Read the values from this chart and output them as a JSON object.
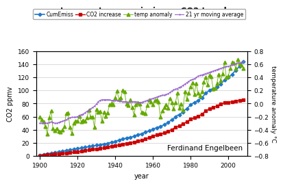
{
  "title": "temperature - emissions - CO2 trends",
  "xlabel": "year",
  "ylabel_left": "CO2 ppmv",
  "ylabel_right": "temperature anomaly °C",
  "watermark": "Ferdinand Engelbeen",
  "ylim_left": [
    0,
    160
  ],
  "ylim_right": [
    -0.8,
    0.8
  ],
  "xlim": [
    1898,
    2010
  ],
  "yticks_left": [
    0,
    20,
    40,
    60,
    80,
    100,
    120,
    140,
    160
  ],
  "yticks_right": [
    -0.8,
    -0.6,
    -0.4,
    -0.2,
    0,
    0.2,
    0.4,
    0.6,
    0.8
  ],
  "xticks": [
    1900,
    1920,
    1940,
    1960,
    1980,
    2000
  ],
  "colors": {
    "CumEmiss": "#1F78C8",
    "CO2 increase": "#CC0000",
    "temp anomaly": "#66AA00",
    "21 yr moving average": "#9966CC"
  },
  "background_color": "#FFFFFF",
  "grid_color": "#CCCCCC",
  "cum_emiss_years": [
    1900,
    1901,
    1902,
    1903,
    1904,
    1905,
    1906,
    1907,
    1908,
    1909,
    1910,
    1911,
    1912,
    1913,
    1914,
    1915,
    1916,
    1917,
    1918,
    1919,
    1920,
    1921,
    1922,
    1923,
    1924,
    1925,
    1926,
    1927,
    1928,
    1929,
    1930,
    1931,
    1932,
    1933,
    1934,
    1935,
    1936,
    1937,
    1938,
    1939,
    1940,
    1941,
    1942,
    1943,
    1944,
    1945,
    1946,
    1947,
    1948,
    1949,
    1950,
    1951,
    1952,
    1953,
    1954,
    1955,
    1956,
    1957,
    1958,
    1959,
    1960,
    1961,
    1962,
    1963,
    1964,
    1965,
    1966,
    1967,
    1968,
    1969,
    1970,
    1971,
    1972,
    1973,
    1974,
    1975,
    1976,
    1977,
    1978,
    1979,
    1980,
    1981,
    1982,
    1983,
    1984,
    1985,
    1986,
    1987,
    1988,
    1989,
    1990,
    1991,
    1992,
    1993,
    1994,
    1995,
    1996,
    1997,
    1998,
    1999,
    2000,
    2001,
    2002,
    2003,
    2004,
    2005,
    2006,
    2007,
    2008
  ],
  "cum_emiss_values": [
    1,
    1.5,
    2,
    2.5,
    3,
    3.5,
    4,
    4.5,
    5,
    5.5,
    6,
    6.5,
    7,
    7.5,
    8,
    8.5,
    9,
    9.5,
    10,
    10.5,
    11,
    11.5,
    12,
    12.5,
    13,
    13.5,
    14,
    14.5,
    15,
    15.5,
    16,
    16.5,
    17,
    17.5,
    18,
    18.5,
    19,
    20,
    20.5,
    21,
    22,
    23,
    24,
    25,
    26,
    26.5,
    27,
    28,
    28.5,
    29,
    30,
    31,
    32,
    33,
    33.5,
    35,
    36,
    37,
    38,
    39,
    41,
    42,
    43,
    44,
    45,
    46,
    48,
    49,
    51,
    53,
    55,
    57,
    59,
    62,
    63,
    65,
    67,
    70,
    72,
    75,
    78,
    80,
    82,
    83,
    85,
    87,
    89,
    92,
    96,
    98,
    100,
    102,
    103,
    104,
    106,
    108,
    110,
    113,
    116,
    118,
    120,
    122,
    125,
    128,
    131,
    134,
    137,
    141,
    144
  ],
  "co2_years": [
    1900,
    1901,
    1902,
    1903,
    1904,
    1905,
    1906,
    1907,
    1908,
    1909,
    1910,
    1911,
    1912,
    1913,
    1914,
    1915,
    1916,
    1917,
    1918,
    1919,
    1920,
    1921,
    1922,
    1923,
    1924,
    1925,
    1926,
    1927,
    1928,
    1929,
    1930,
    1931,
    1932,
    1933,
    1934,
    1935,
    1936,
    1937,
    1938,
    1939,
    1940,
    1941,
    1942,
    1943,
    1944,
    1945,
    1946,
    1947,
    1948,
    1949,
    1950,
    1951,
    1952,
    1953,
    1954,
    1955,
    1956,
    1957,
    1958,
    1959,
    1960,
    1961,
    1962,
    1963,
    1964,
    1965,
    1966,
    1967,
    1968,
    1969,
    1970,
    1971,
    1972,
    1973,
    1974,
    1975,
    1976,
    1977,
    1978,
    1979,
    1980,
    1981,
    1982,
    1983,
    1984,
    1985,
    1986,
    1987,
    1988,
    1989,
    1990,
    1991,
    1992,
    1993,
    1994,
    1995,
    1996,
    1997,
    1998,
    1999,
    2000,
    2001,
    2002,
    2003,
    2004,
    2005,
    2006,
    2007,
    2008
  ],
  "co2_values": [
    0,
    0.5,
    1,
    1,
    1.5,
    1.5,
    2,
    2,
    2.5,
    2.5,
    3,
    3,
    3.5,
    4,
    4,
    4.5,
    5,
    5,
    5.5,
    6,
    6,
    6.5,
    7,
    7.5,
    8,
    8.5,
    9,
    9.5,
    10,
    10,
    10.5,
    11,
    11,
    11.5,
    12,
    12.5,
    13,
    14,
    14.5,
    15,
    15.5,
    16,
    16.5,
    17,
    18,
    18,
    19,
    19.5,
    20,
    20.5,
    21,
    22,
    22.5,
    23,
    23.5,
    24.5,
    25.5,
    26.5,
    28,
    29,
    30,
    31,
    32,
    32.5,
    33,
    34,
    35,
    36,
    37.5,
    39,
    40,
    42,
    43.5,
    45,
    46,
    47.5,
    49,
    50.5,
    52,
    54,
    56,
    57,
    58,
    59,
    61,
    62,
    64,
    66,
    69,
    70,
    72,
    73,
    74,
    75,
    76,
    78,
    79.5,
    80,
    81,
    81.5,
    82,
    82.5,
    83,
    83.5,
    84,
    84.5,
    85,
    85.5,
    86
  ],
  "temp_years": [
    1900,
    1901,
    1902,
    1903,
    1904,
    1905,
    1906,
    1907,
    1908,
    1909,
    1910,
    1911,
    1912,
    1913,
    1914,
    1915,
    1916,
    1917,
    1918,
    1919,
    1920,
    1921,
    1922,
    1923,
    1924,
    1925,
    1926,
    1927,
    1928,
    1929,
    1930,
    1931,
    1932,
    1933,
    1934,
    1935,
    1936,
    1937,
    1938,
    1939,
    1940,
    1941,
    1942,
    1943,
    1944,
    1945,
    1946,
    1947,
    1948,
    1949,
    1950,
    1951,
    1952,
    1953,
    1954,
    1955,
    1956,
    1957,
    1958,
    1959,
    1960,
    1961,
    1962,
    1963,
    1964,
    1965,
    1966,
    1967,
    1968,
    1969,
    1970,
    1971,
    1972,
    1973,
    1974,
    1975,
    1976,
    1977,
    1978,
    1979,
    1980,
    1981,
    1982,
    1983,
    1984,
    1985,
    1986,
    1987,
    1988,
    1989,
    1990,
    1991,
    1992,
    1993,
    1994,
    1995,
    1996,
    1997,
    1998,
    1999,
    2000,
    2001,
    2002,
    2003,
    2004,
    2005,
    2006,
    2007,
    2008
  ],
  "temp_values": [
    -0.2,
    -0.25,
    -0.28,
    -0.35,
    -0.47,
    -0.22,
    -0.11,
    -0.38,
    -0.42,
    -0.38,
    -0.43,
    -0.44,
    -0.4,
    -0.35,
    -0.15,
    -0.14,
    -0.36,
    -0.46,
    -0.3,
    -0.27,
    -0.27,
    -0.19,
    -0.28,
    -0.26,
    -0.27,
    -0.22,
    -0.1,
    -0.2,
    -0.2,
    -0.36,
    -0.09,
    -0.13,
    -0.12,
    -0.27,
    -0.13,
    -0.19,
    -0.14,
    -0.02,
    -0.0,
    -0.02,
    0.09,
    0.19,
    0.07,
    0.09,
    0.2,
    0.18,
    -0.01,
    -0.03,
    0.06,
    -0.06,
    -0.17,
    -0.02,
    0.02,
    -0.01,
    -0.13,
    -0.14,
    -0.15,
    -0.03,
    0.06,
    0.03,
    -0.02,
    0.05,
    0.06,
    0.03,
    -0.2,
    -0.11,
    -0.06,
    -0.02,
    -0.07,
    0.08,
    0.02,
    -0.08,
    0.01,
    0.16,
    -0.07,
    -0.01,
    -0.1,
    0.18,
    0.07,
    0.16,
    0.26,
    0.32,
    0.14,
    0.31,
    0.16,
    0.12,
    0.18,
    0.33,
    0.4,
    0.29,
    0.44,
    0.41,
    0.23,
    0.24,
    0.31,
    0.45,
    0.35,
    0.46,
    0.63,
    0.4,
    0.42,
    0.54,
    0.63,
    0.62,
    0.54,
    0.68,
    0.61,
    0.59,
    0.54
  ],
  "mavg_years": [
    1900,
    1901,
    1902,
    1903,
    1904,
    1905,
    1906,
    1907,
    1908,
    1909,
    1910,
    1911,
    1912,
    1913,
    1914,
    1915,
    1916,
    1917,
    1918,
    1919,
    1920,
    1921,
    1922,
    1923,
    1924,
    1925,
    1926,
    1927,
    1928,
    1929,
    1930,
    1931,
    1932,
    1933,
    1934,
    1935,
    1936,
    1937,
    1938,
    1939,
    1940,
    1941,
    1942,
    1943,
    1944,
    1945,
    1946,
    1947,
    1948,
    1949,
    1950,
    1951,
    1952,
    1953,
    1954,
    1955,
    1956,
    1957,
    1958,
    1959,
    1960,
    1961,
    1962,
    1963,
    1964,
    1965,
    1966,
    1967,
    1968,
    1969,
    1970,
    1971,
    1972,
    1973,
    1974,
    1975,
    1976,
    1977,
    1978,
    1979,
    1980,
    1981,
    1982,
    1983,
    1984,
    1985,
    1986,
    1987,
    1988,
    1989,
    1990,
    1991,
    1992,
    1993,
    1994,
    1995,
    1996,
    1997,
    1998,
    1999,
    2000,
    2001,
    2002,
    2003,
    2004,
    2005,
    2006,
    2007,
    2008
  ],
  "mavg_values": [
    -0.3,
    -0.3,
    -0.3,
    -0.3,
    -0.3,
    -0.29,
    -0.28,
    -0.29,
    -0.3,
    -0.3,
    -0.29,
    -0.28,
    -0.27,
    -0.26,
    -0.25,
    -0.23,
    -0.22,
    -0.21,
    -0.21,
    -0.21,
    -0.2,
    -0.18,
    -0.17,
    -0.16,
    -0.14,
    -0.12,
    -0.1,
    -0.08,
    -0.06,
    -0.04,
    -0.01,
    0.03,
    0.05,
    0.06,
    0.06,
    0.06,
    0.06,
    0.06,
    0.05,
    0.05,
    0.05,
    0.05,
    0.04,
    0.04,
    0.03,
    0.03,
    0.03,
    0.02,
    0.03,
    0.03,
    0.03,
    0.03,
    0.02,
    0.02,
    0.02,
    0.03,
    0.04,
    0.05,
    0.06,
    0.07,
    0.08,
    0.09,
    0.1,
    0.11,
    0.12,
    0.13,
    0.13,
    0.14,
    0.15,
    0.17,
    0.19,
    0.21,
    0.22,
    0.23,
    0.25,
    0.26,
    0.28,
    0.3,
    0.32,
    0.34,
    0.36,
    0.37,
    0.38,
    0.4,
    0.42,
    0.43,
    0.44,
    0.45,
    0.46,
    0.47,
    0.48,
    0.49,
    0.5,
    0.51,
    0.52,
    0.53,
    0.54,
    0.55,
    0.56,
    0.57,
    0.57,
    0.58,
    0.59,
    0.6,
    0.61,
    0.62,
    0.62,
    0.63,
    0.64
  ]
}
